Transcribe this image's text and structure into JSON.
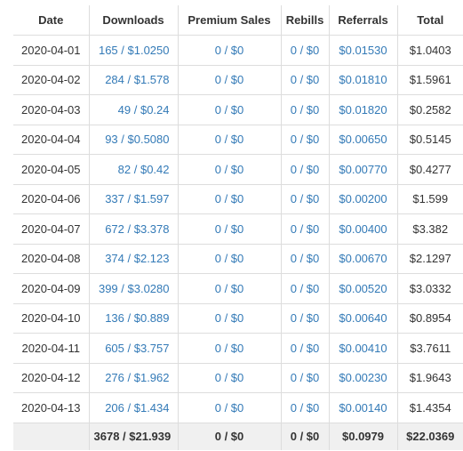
{
  "table": {
    "columns": [
      "Date",
      "Downloads",
      "Premium Sales",
      "Rebills",
      "Referrals",
      "Total"
    ],
    "rows": [
      {
        "date": "2020-04-01",
        "downloads": "165 / $1.0250",
        "premium_sales": "0 / $0",
        "rebills": "0 / $0",
        "referrals": "$0.01530",
        "total": "$1.0403"
      },
      {
        "date": "2020-04-02",
        "downloads": "284 / $1.578",
        "premium_sales": "0 / $0",
        "rebills": "0 / $0",
        "referrals": "$0.01810",
        "total": "$1.5961"
      },
      {
        "date": "2020-04-03",
        "downloads": "49 / $0.24",
        "premium_sales": "0 / $0",
        "rebills": "0 / $0",
        "referrals": "$0.01820",
        "total": "$0.2582"
      },
      {
        "date": "2020-04-04",
        "downloads": "93 / $0.5080",
        "premium_sales": "0 / $0",
        "rebills": "0 / $0",
        "referrals": "$0.00650",
        "total": "$0.5145"
      },
      {
        "date": "2020-04-05",
        "downloads": "82 / $0.42",
        "premium_sales": "0 / $0",
        "rebills": "0 / $0",
        "referrals": "$0.00770",
        "total": "$0.4277"
      },
      {
        "date": "2020-04-06",
        "downloads": "337 / $1.597",
        "premium_sales": "0 / $0",
        "rebills": "0 / $0",
        "referrals": "$0.00200",
        "total": "$1.599"
      },
      {
        "date": "2020-04-07",
        "downloads": "672 / $3.378",
        "premium_sales": "0 / $0",
        "rebills": "0 / $0",
        "referrals": "$0.00400",
        "total": "$3.382"
      },
      {
        "date": "2020-04-08",
        "downloads": "374 / $2.123",
        "premium_sales": "0 / $0",
        "rebills": "0 / $0",
        "referrals": "$0.00670",
        "total": "$2.1297"
      },
      {
        "date": "2020-04-09",
        "downloads": "399 / $3.0280",
        "premium_sales": "0 / $0",
        "rebills": "0 / $0",
        "referrals": "$0.00520",
        "total": "$3.0332"
      },
      {
        "date": "2020-04-10",
        "downloads": "136 / $0.889",
        "premium_sales": "0 / $0",
        "rebills": "0 / $0",
        "referrals": "$0.00640",
        "total": "$0.8954"
      },
      {
        "date": "2020-04-11",
        "downloads": "605 / $3.757",
        "premium_sales": "0 / $0",
        "rebills": "0 / $0",
        "referrals": "$0.00410",
        "total": "$3.7611"
      },
      {
        "date": "2020-04-12",
        "downloads": "276 / $1.962",
        "premium_sales": "0 / $0",
        "rebills": "0 / $0",
        "referrals": "$0.00230",
        "total": "$1.9643"
      },
      {
        "date": "2020-04-13",
        "downloads": "206 / $1.434",
        "premium_sales": "0 / $0",
        "rebills": "0 / $0",
        "referrals": "$0.00140",
        "total": "$1.4354"
      }
    ],
    "footer": {
      "date": "",
      "downloads": "3678 / $21.939",
      "premium_sales": "0 / $0",
      "rebills": "0 / $0",
      "referrals": "$0.0979",
      "total": "$22.0369"
    }
  },
  "colors": {
    "link": "#337ab7",
    "text": "#333333",
    "border": "#dddddd",
    "footer_bg": "#f0f0f0"
  }
}
